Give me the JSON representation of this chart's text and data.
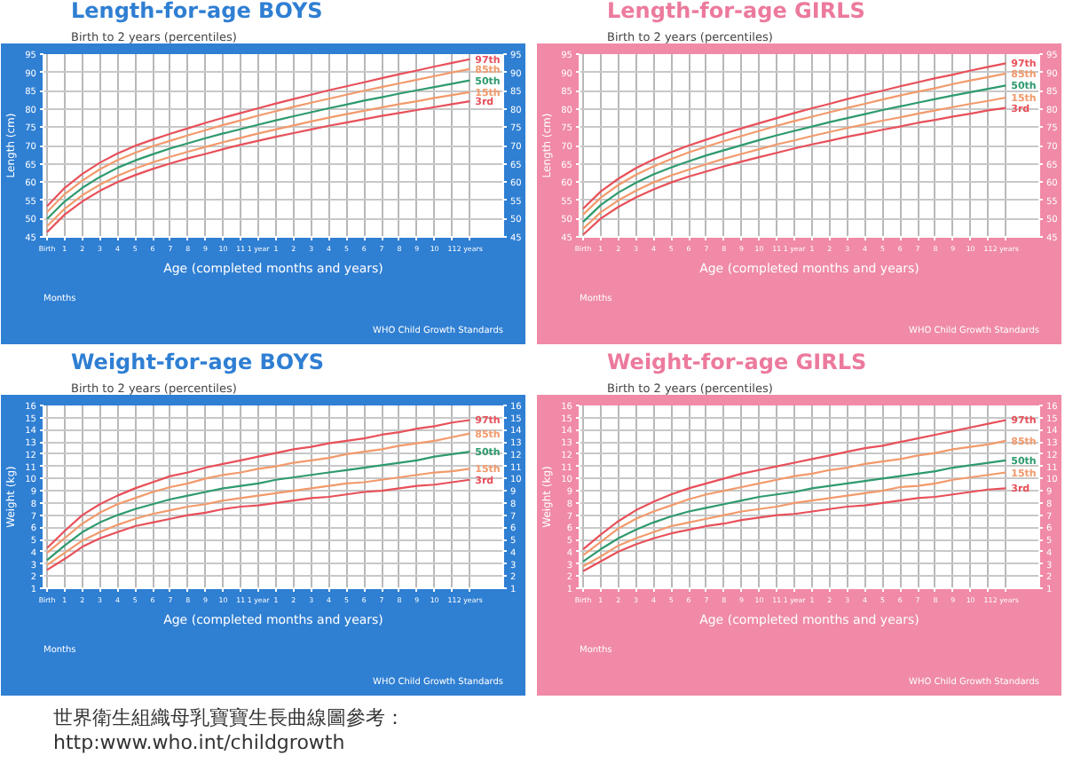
{
  "chart_data": [
    {
      "type": "line",
      "title": "Length-for-age BOYS",
      "subtitle": "Birth to 2 years (percentiles)",
      "xlabel": "Age (completed months and years)",
      "ylabel": "Length (cm)",
      "annotations": [
        "Months",
        "WHO Child Growth Standards"
      ],
      "categories": [
        "Birth",
        "1",
        "2",
        "3",
        "4",
        "5",
        "6",
        "7",
        "8",
        "9",
        "10",
        "11",
        "1 year",
        "1",
        "2",
        "3",
        "4",
        "5",
        "6",
        "7",
        "8",
        "9",
        "10",
        "11",
        "2 years"
      ],
      "ylim": [
        45,
        95
      ],
      "yticks": [
        45,
        50,
        55,
        60,
        65,
        70,
        75,
        80,
        85,
        90,
        95
      ],
      "y2lim": [
        45,
        95
      ],
      "y2ticks": [
        45,
        50,
        55,
        60,
        65,
        70,
        75,
        80,
        85,
        90,
        95
      ],
      "grid": true,
      "legend": false,
      "marker": "none",
      "line_style": "solid",
      "series": [
        {
          "name": "97th",
          "color": "#e8505a",
          "values": [
            53.4,
            58.4,
            62.2,
            65.3,
            67.8,
            69.9,
            71.6,
            73.2,
            74.7,
            76.2,
            77.6,
            78.9,
            80.2,
            81.5,
            82.7,
            83.9,
            85.1,
            86.2,
            87.3,
            88.4,
            89.5,
            90.5,
            91.6,
            92.6,
            93.6
          ]
        },
        {
          "name": "85th",
          "color": "#f29a6c",
          "values": [
            51.8,
            56.7,
            60.4,
            63.5,
            66.0,
            68.0,
            69.8,
            71.3,
            72.8,
            74.2,
            75.6,
            76.9,
            78.2,
            79.4,
            80.6,
            81.7,
            82.8,
            83.9,
            85.0,
            86.0,
            87.0,
            88.0,
            89.0,
            90.0,
            90.9
          ]
        },
        {
          "name": "50th",
          "color": "#2e9a6e",
          "values": [
            49.9,
            54.7,
            58.4,
            61.4,
            63.9,
            65.9,
            67.6,
            69.2,
            70.6,
            72.0,
            73.3,
            74.5,
            75.7,
            76.9,
            78.0,
            79.1,
            80.2,
            81.2,
            82.3,
            83.2,
            84.2,
            85.1,
            86.0,
            86.9,
            87.8
          ]
        },
        {
          "name": "15th",
          "color": "#f29a6c",
          "values": [
            47.9,
            52.7,
            56.4,
            59.3,
            61.7,
            63.7,
            65.4,
            66.9,
            68.3,
            69.6,
            70.9,
            72.1,
            73.3,
            74.4,
            75.5,
            76.6,
            77.6,
            78.6,
            79.5,
            80.4,
            81.3,
            82.1,
            83.0,
            83.8,
            84.6
          ]
        },
        {
          "name": "3rd",
          "color": "#e8505a",
          "values": [
            46.3,
            51.1,
            54.7,
            57.6,
            60.0,
            61.9,
            63.6,
            65.1,
            66.5,
            67.7,
            69.0,
            70.2,
            71.3,
            72.4,
            73.4,
            74.4,
            75.4,
            76.3,
            77.2,
            78.1,
            78.9,
            79.7,
            80.5,
            81.3,
            82.1
          ]
        }
      ]
    },
    {
      "type": "line",
      "title": "Length-for-age GIRLS",
      "subtitle": "Birth to 2 years (percentiles)",
      "xlabel": "Age (completed months and years)",
      "ylabel": "Length (cm)",
      "annotations": [
        "Months",
        "WHO Child Growth Standards"
      ],
      "categories": [
        "Birth",
        "1",
        "2",
        "3",
        "4",
        "5",
        "6",
        "7",
        "8",
        "9",
        "10",
        "11",
        "1 year",
        "1",
        "2",
        "3",
        "4",
        "5",
        "6",
        "7",
        "8",
        "9",
        "10",
        "11",
        "2 years"
      ],
      "ylim": [
        45,
        95
      ],
      "yticks": [
        45,
        50,
        55,
        60,
        65,
        70,
        75,
        80,
        85,
        90,
        95
      ],
      "y2lim": [
        45,
        95
      ],
      "y2ticks": [
        45,
        50,
        55,
        60,
        65,
        70,
        75,
        80,
        85,
        90,
        95
      ],
      "grid": true,
      "legend": false,
      "marker": "none",
      "line_style": "solid",
      "series": [
        {
          "name": "97th",
          "color": "#e8505a",
          "values": [
            52.7,
            57.4,
            60.9,
            63.8,
            66.2,
            68.2,
            70.0,
            71.6,
            73.2,
            74.7,
            76.1,
            77.5,
            78.9,
            80.2,
            81.4,
            82.7,
            83.9,
            85.0,
            86.2,
            87.3,
            88.4,
            89.4,
            90.5,
            91.5,
            92.5
          ]
        },
        {
          "name": "85th",
          "color": "#f29a6c",
          "values": [
            51.1,
            55.7,
            59.2,
            62.0,
            64.3,
            66.3,
            68.1,
            69.7,
            71.2,
            72.6,
            74.0,
            75.4,
            76.7,
            77.9,
            79.1,
            80.3,
            81.4,
            82.6,
            83.7,
            84.7,
            85.7,
            86.8,
            87.8,
            88.7,
            89.7
          ]
        },
        {
          "name": "50th",
          "color": "#2e9a6e",
          "values": [
            49.1,
            53.7,
            57.1,
            59.8,
            62.1,
            64.0,
            65.7,
            67.3,
            68.7,
            70.1,
            71.5,
            72.8,
            74.0,
            75.2,
            76.4,
            77.5,
            78.6,
            79.7,
            80.7,
            81.7,
            82.7,
            83.7,
            84.6,
            85.5,
            86.4
          ]
        },
        {
          "name": "15th",
          "color": "#f29a6c",
          "values": [
            47.2,
            51.7,
            55.0,
            57.6,
            59.9,
            61.8,
            63.4,
            64.9,
            66.4,
            67.7,
            69.0,
            70.3,
            71.4,
            72.6,
            73.7,
            74.8,
            75.8,
            76.8,
            77.7,
            78.7,
            79.6,
            80.5,
            81.4,
            82.2,
            83.1
          ]
        },
        {
          "name": "3rd",
          "color": "#e8505a",
          "values": [
            45.6,
            50.0,
            53.2,
            55.8,
            58.0,
            59.9,
            61.5,
            62.9,
            64.3,
            65.6,
            66.8,
            68.0,
            69.2,
            70.3,
            71.3,
            72.4,
            73.3,
            74.3,
            75.2,
            76.2,
            77.0,
            77.9,
            78.7,
            79.6,
            80.3
          ]
        }
      ]
    },
    {
      "type": "line",
      "title": "Weight-for-age BOYS",
      "subtitle": "Birth to 2 years (percentiles)",
      "xlabel": "Age (completed months and years)",
      "ylabel": "Weight (kg)",
      "annotations": [
        "Months",
        "WHO Child Growth Standards"
      ],
      "categories": [
        "Birth",
        "1",
        "2",
        "3",
        "4",
        "5",
        "6",
        "7",
        "8",
        "9",
        "10",
        "11",
        "1 year",
        "1",
        "2",
        "3",
        "4",
        "5",
        "6",
        "7",
        "8",
        "9",
        "10",
        "11",
        "2 years"
      ],
      "ylim": [
        1,
        16
      ],
      "yticks": [
        1,
        2,
        3,
        4,
        5,
        6,
        7,
        8,
        9,
        10,
        11,
        12,
        13,
        14,
        15,
        16
      ],
      "y2lim": [
        1,
        16
      ],
      "y2ticks": [
        1,
        2,
        3,
        4,
        5,
        6,
        7,
        8,
        9,
        10,
        11,
        12,
        13,
        14,
        15,
        16
      ],
      "grid": true,
      "legend": false,
      "marker": "none",
      "line_style": "solid",
      "series": [
        {
          "name": "97th",
          "color": "#e8505a",
          "values": [
            4.3,
            5.7,
            7.0,
            7.9,
            8.6,
            9.2,
            9.7,
            10.2,
            10.5,
            10.9,
            11.2,
            11.5,
            11.8,
            12.1,
            12.4,
            12.6,
            12.9,
            13.1,
            13.3,
            13.6,
            13.8,
            14.1,
            14.3,
            14.6,
            14.8
          ]
        },
        {
          "name": "85th",
          "color": "#f29a6c",
          "values": [
            3.9,
            5.1,
            6.3,
            7.2,
            7.9,
            8.4,
            8.9,
            9.3,
            9.6,
            10.0,
            10.3,
            10.5,
            10.8,
            11.0,
            11.3,
            11.5,
            11.7,
            12.0,
            12.2,
            12.4,
            12.7,
            12.9,
            13.1,
            13.4,
            13.7
          ]
        },
        {
          "name": "50th",
          "color": "#2e9a6e",
          "values": [
            3.3,
            4.5,
            5.6,
            6.4,
            7.0,
            7.5,
            7.9,
            8.3,
            8.6,
            8.9,
            9.2,
            9.4,
            9.6,
            9.9,
            10.1,
            10.3,
            10.5,
            10.7,
            10.9,
            11.1,
            11.3,
            11.5,
            11.8,
            12.0,
            12.2
          ]
        },
        {
          "name": "15th",
          "color": "#f29a6c",
          "values": [
            2.9,
            3.9,
            4.9,
            5.6,
            6.2,
            6.7,
            7.1,
            7.4,
            7.7,
            7.9,
            8.2,
            8.4,
            8.6,
            8.8,
            9.0,
            9.2,
            9.4,
            9.6,
            9.7,
            9.9,
            10.1,
            10.3,
            10.5,
            10.6,
            10.8
          ]
        },
        {
          "name": "3rd",
          "color": "#e8505a",
          "values": [
            2.5,
            3.4,
            4.4,
            5.1,
            5.6,
            6.1,
            6.4,
            6.7,
            7.0,
            7.2,
            7.5,
            7.7,
            7.8,
            8.0,
            8.2,
            8.4,
            8.5,
            8.7,
            8.9,
            9.0,
            9.2,
            9.4,
            9.5,
            9.7,
            9.9
          ]
        }
      ]
    },
    {
      "type": "line",
      "title": "Weight-for-age GIRLS",
      "subtitle": "Birth to 2 years (percentiles)",
      "xlabel": "Age (completed months and years)",
      "ylabel": "Weight (kg)",
      "annotations": [
        "Months",
        "WHO Child Growth Standards"
      ],
      "categories": [
        "Birth",
        "1",
        "2",
        "3",
        "4",
        "5",
        "6",
        "7",
        "8",
        "9",
        "10",
        "11",
        "1 year",
        "1",
        "2",
        "3",
        "4",
        "5",
        "6",
        "7",
        "8",
        "9",
        "10",
        "11",
        "2 years"
      ],
      "ylim": [
        1,
        16
      ],
      "yticks": [
        1,
        2,
        3,
        4,
        5,
        6,
        7,
        8,
        9,
        10,
        11,
        12,
        13,
        14,
        15,
        16
      ],
      "y2lim": [
        1,
        16
      ],
      "y2ticks": [
        1,
        2,
        3,
        4,
        5,
        6,
        7,
        8,
        9,
        10,
        11,
        12,
        13,
        14,
        15,
        16
      ],
      "grid": true,
      "legend": false,
      "marker": "none",
      "line_style": "solid",
      "series": [
        {
          "name": "97th",
          "color": "#e8505a",
          "values": [
            4.2,
            5.4,
            6.5,
            7.4,
            8.1,
            8.7,
            9.2,
            9.6,
            10.0,
            10.4,
            10.7,
            11.0,
            11.3,
            11.6,
            11.9,
            12.2,
            12.5,
            12.7,
            13.0,
            13.3,
            13.6,
            13.9,
            14.2,
            14.5,
            14.8
          ]
        },
        {
          "name": "85th",
          "color": "#f29a6c",
          "values": [
            3.7,
            4.8,
            5.9,
            6.7,
            7.3,
            7.8,
            8.3,
            8.7,
            9.0,
            9.3,
            9.6,
            9.9,
            10.2,
            10.4,
            10.7,
            10.9,
            11.2,
            11.4,
            11.6,
            11.9,
            12.1,
            12.4,
            12.6,
            12.8,
            13.1
          ]
        },
        {
          "name": "50th",
          "color": "#2e9a6e",
          "values": [
            3.2,
            4.2,
            5.1,
            5.8,
            6.4,
            6.9,
            7.3,
            7.6,
            7.9,
            8.2,
            8.5,
            8.7,
            8.9,
            9.2,
            9.4,
            9.6,
            9.8,
            10.0,
            10.2,
            10.4,
            10.6,
            10.9,
            11.1,
            11.3,
            11.5
          ]
        },
        {
          "name": "15th",
          "color": "#f29a6c",
          "values": [
            2.8,
            3.6,
            4.5,
            5.1,
            5.6,
            6.1,
            6.4,
            6.7,
            7.0,
            7.3,
            7.5,
            7.7,
            8.0,
            8.2,
            8.4,
            8.6,
            8.8,
            9.0,
            9.3,
            9.4,
            9.6,
            9.9,
            10.1,
            10.3,
            10.5
          ]
        },
        {
          "name": "3rd",
          "color": "#e8505a",
          "values": [
            2.4,
            3.2,
            4.0,
            4.6,
            5.1,
            5.5,
            5.8,
            6.1,
            6.3,
            6.6,
            6.8,
            7.0,
            7.1,
            7.3,
            7.5,
            7.7,
            7.8,
            8.0,
            8.2,
            8.4,
            8.5,
            8.7,
            8.9,
            9.1,
            9.2
          ]
        }
      ]
    },
    {
      "type": "other",
      "annotations": [
        "世界衛生組織母乳寶寶生長曲線圖參考：",
        "http:www.who.int/childgrowth"
      ]
    }
  ]
}
